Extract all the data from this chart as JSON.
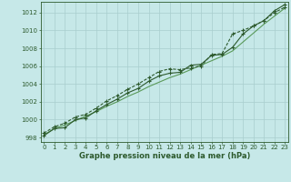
{
  "background_color": "#c6e8e8",
  "grid_color": "#a8cece",
  "line_color_dark": "#2d5a2d",
  "line_color_light": "#5a9a5a",
  "xlabel": "Graphe pression niveau de la mer (hPa)",
  "xlabel_fontsize": 6.0,
  "tick_fontsize": 5.0,
  "xlim": [
    -0.3,
    23.3
  ],
  "ylim": [
    997.5,
    1013.2
  ],
  "yticks": [
    998,
    1000,
    1002,
    1004,
    1006,
    1008,
    1010,
    1012
  ],
  "xticks": [
    0,
    1,
    2,
    3,
    4,
    5,
    6,
    7,
    8,
    9,
    10,
    11,
    12,
    13,
    14,
    15,
    16,
    17,
    18,
    19,
    20,
    21,
    22,
    23
  ],
  "series_smooth_x": [
    0,
    1,
    2,
    3,
    4,
    5,
    6,
    7,
    8,
    9,
    10,
    11,
    12,
    13,
    14,
    15,
    16,
    17,
    18,
    19,
    20,
    21,
    22,
    23
  ],
  "series_smooth_y": [
    998.3,
    999.0,
    999.4,
    999.9,
    1000.4,
    1000.9,
    1001.5,
    1002.0,
    1002.6,
    1003.1,
    1003.7,
    1004.2,
    1004.7,
    1005.1,
    1005.6,
    1006.1,
    1006.6,
    1007.1,
    1007.7,
    1008.7,
    1009.7,
    1010.7,
    1011.6,
    1012.5
  ],
  "series1_x": [
    0,
    1,
    2,
    3,
    4,
    5,
    6,
    7,
    8,
    9,
    10,
    11,
    12,
    13,
    14,
    15,
    16,
    17,
    18,
    19,
    20,
    21,
    22,
    23
  ],
  "series1_y": [
    998.2,
    999.0,
    999.1,
    1000.0,
    1000.2,
    1001.0,
    1001.7,
    1002.3,
    1003.0,
    1003.5,
    1004.3,
    1004.9,
    1005.2,
    1005.3,
    1006.1,
    1006.2,
    1007.2,
    1007.3,
    1008.1,
    1009.6,
    1010.5,
    1011.1,
    1012.2,
    1012.9
  ],
  "series2_x": [
    0,
    1,
    2,
    3,
    4,
    5,
    6,
    7,
    8,
    9,
    10,
    11,
    12,
    13,
    14,
    15,
    16,
    17,
    18,
    19,
    20,
    21,
    22,
    23
  ],
  "series2_y": [
    998.5,
    999.2,
    999.6,
    1000.3,
    1000.6,
    1001.3,
    1002.1,
    1002.7,
    1003.4,
    1004.0,
    1004.7,
    1005.4,
    1005.7,
    1005.6,
    1005.8,
    1006.0,
    1007.3,
    1007.4,
    1009.6,
    1010.0,
    1010.5,
    1011.1,
    1012.0,
    1012.6
  ]
}
